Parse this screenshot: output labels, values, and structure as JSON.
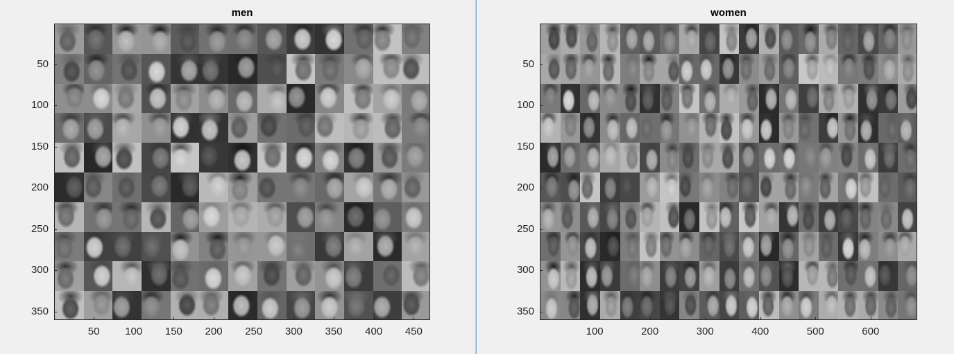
{
  "figures": [
    {
      "id": "left",
      "title": "men",
      "x_ticks": [
        50,
        100,
        150,
        200,
        250,
        300,
        350,
        400,
        450
      ],
      "y_ticks": [
        50,
        100,
        150,
        200,
        250,
        300,
        350
      ],
      "x_range": [
        0.5,
        470.5
      ],
      "y_range": [
        0.5,
        360.5
      ],
      "grid": {
        "cols": 13,
        "rows": 10
      },
      "image_description": "grid of grayscale male face crops"
    },
    {
      "id": "right",
      "title": "women",
      "x_ticks": [
        100,
        200,
        300,
        400,
        500,
        600
      ],
      "y_ticks": [
        50,
        100,
        150,
        200,
        250,
        300,
        350
      ],
      "x_range": [
        0.5,
        684.5
      ],
      "y_range": [
        0.5,
        360.5
      ],
      "grid": {
        "cols": 19,
        "rows": 10
      },
      "image_description": "grid of grayscale face crops"
    }
  ]
}
